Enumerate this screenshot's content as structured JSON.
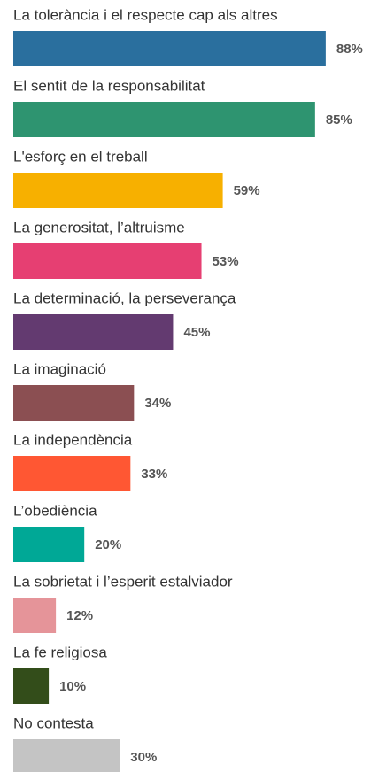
{
  "chart_data": {
    "type": "bar",
    "orientation": "horizontal",
    "categories": [
      "La tolerància i el respecte cap als altres",
      "El sentit de la responsabilitat",
      "L'esforç en el treball",
      "La generositat, l’altruisme",
      "La determinació, la perseverança",
      "La imaginació",
      "La independència",
      "L’obediència",
      "La sobrietat i l’esperit estalviador",
      "La fe religiosa",
      "No contesta"
    ],
    "values": [
      88,
      85,
      59,
      53,
      45,
      34,
      33,
      20,
      12,
      10,
      30
    ],
    "value_labels": [
      "88%",
      "85%",
      "59%",
      "53%",
      "45%",
      "34%",
      "33%",
      "20%",
      "12%",
      "10%",
      "30%"
    ],
    "colors": [
      "#2a6f9e",
      "#2e9470",
      "#f7b000",
      "#e63f72",
      "#633a70",
      "#8b4f52",
      "#ff5733",
      "#00a896",
      "#e59499",
      "#334d1a",
      "#c4c4c4"
    ]
  }
}
